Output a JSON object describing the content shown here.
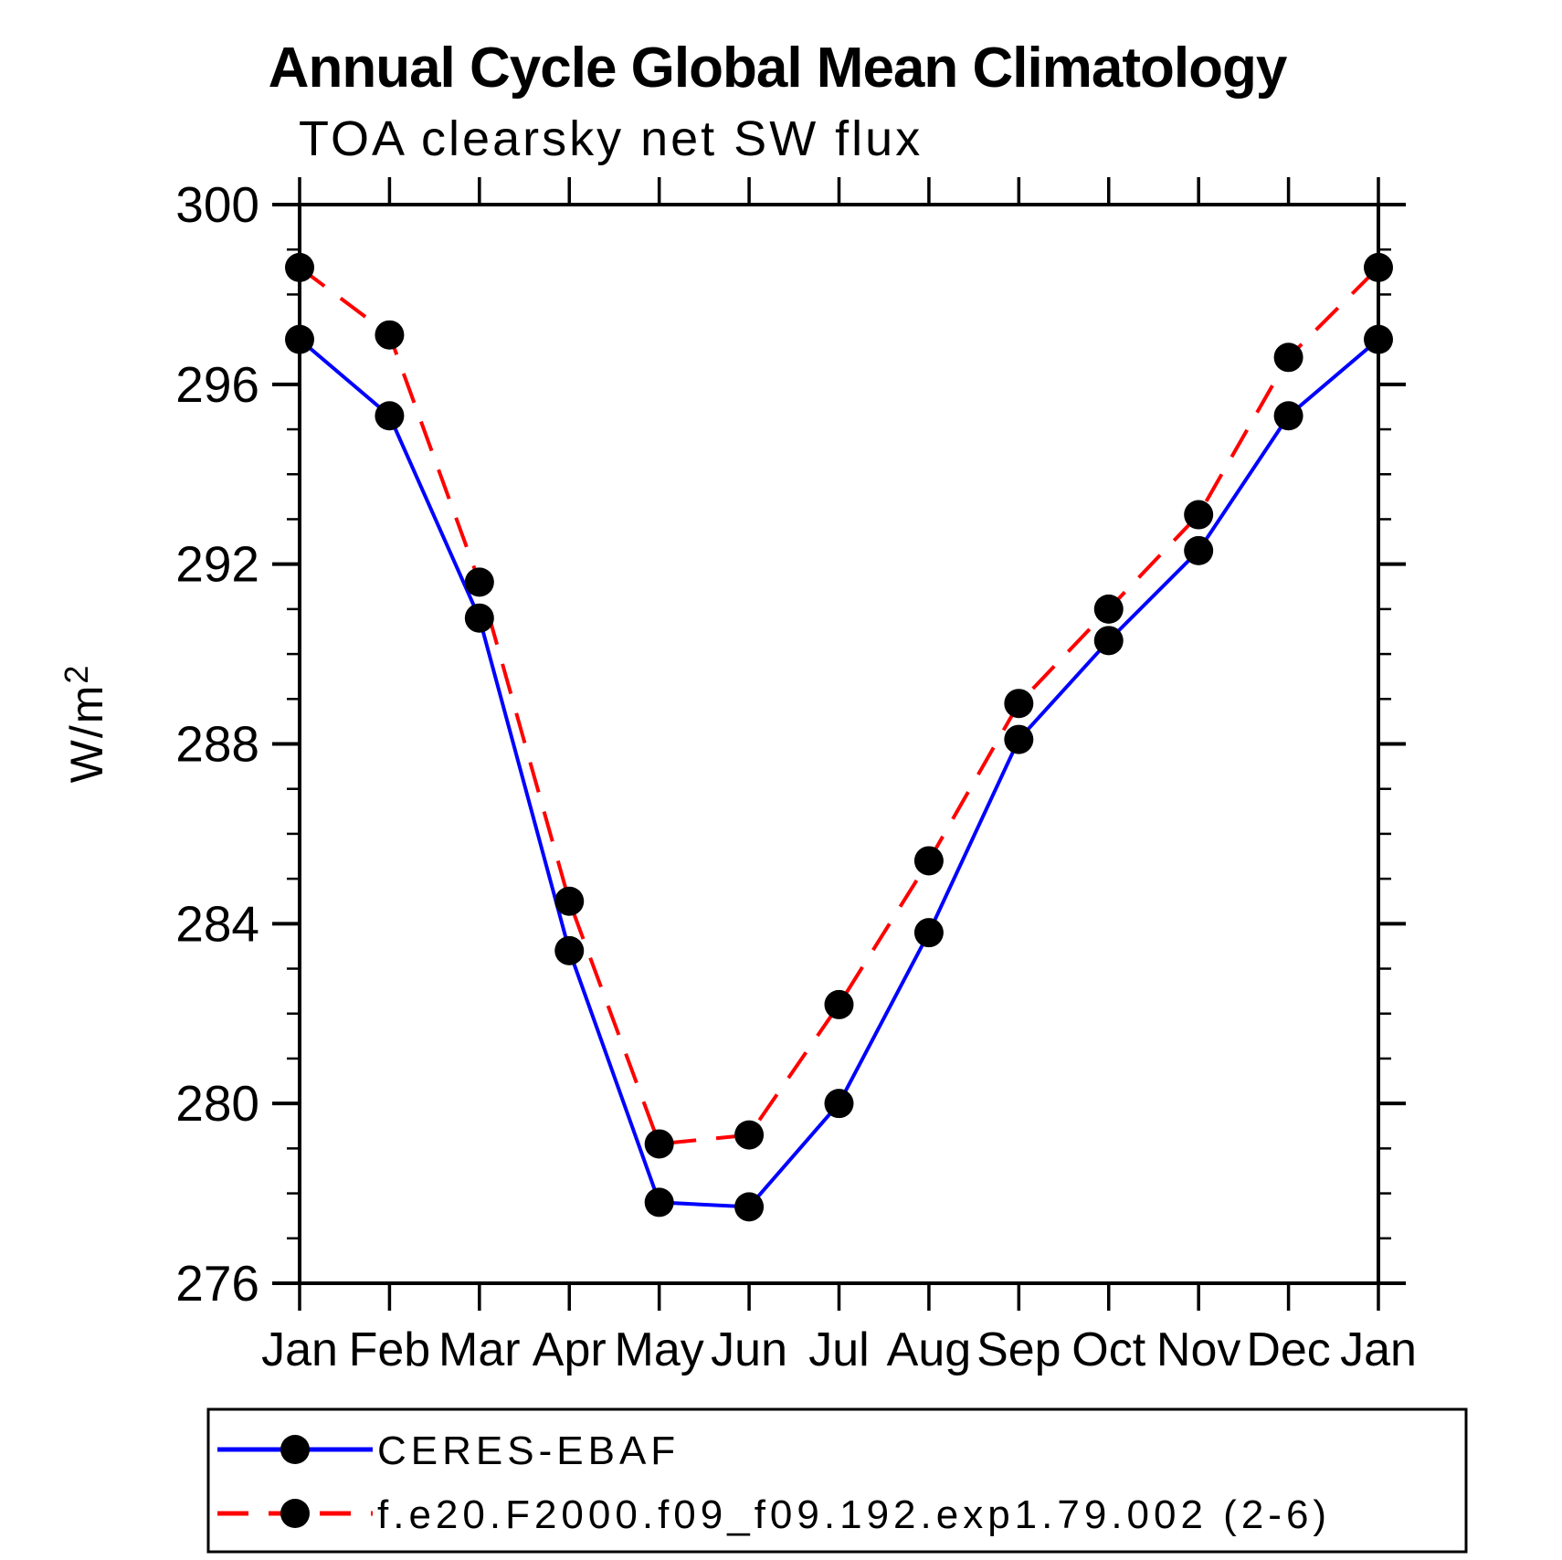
{
  "chart_data": {
    "type": "line",
    "title": "Annual Cycle Global Mean Climatology",
    "subtitle": "TOA clearsky net SW flux",
    "ylabel": "W/m²",
    "x_categories": [
      "Jan",
      "Feb",
      "Mar",
      "Apr",
      "May",
      "Jun",
      "Jul",
      "Aug",
      "Sep",
      "Oct",
      "Nov",
      "Dec",
      "Jan"
    ],
    "ylim": [
      276,
      300
    ],
    "y_major_ticks": [
      276,
      280,
      284,
      288,
      292,
      296,
      300
    ],
    "y_minor_tick_step": 1,
    "grid": false,
    "legend_position": "bottom",
    "marker_color": "#000000",
    "series": [
      {
        "name": "CERES-EBAF",
        "color": "#0000ff",
        "line_style": "solid",
        "marker": "filled-circle",
        "values": [
          297.0,
          295.3,
          290.8,
          283.4,
          277.8,
          277.7,
          280.0,
          283.8,
          288.1,
          290.3,
          292.3,
          295.3,
          297.0
        ]
      },
      {
        "name": "f.e20.F2000.f09_f09.192.exp1.79.002 (2-6)",
        "color": "#ff0000",
        "line_style": "dashed",
        "marker": "filled-circle",
        "values": [
          298.6,
          297.1,
          291.6,
          284.5,
          279.1,
          279.3,
          282.2,
          285.4,
          288.9,
          291.0,
          293.1,
          296.6,
          298.6
        ]
      }
    ]
  }
}
